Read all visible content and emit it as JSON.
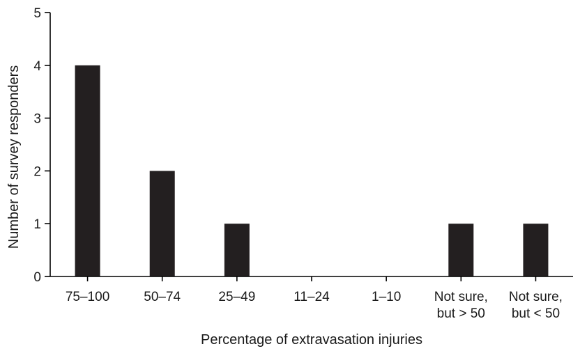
{
  "chart_data": {
    "type": "bar",
    "categories": [
      [
        "75–100"
      ],
      [
        "50–74"
      ],
      [
        "25–49"
      ],
      [
        "11–24"
      ],
      [
        "1–10"
      ],
      [
        "Not sure,",
        "but > 50"
      ],
      [
        "Not sure,",
        "but < 50"
      ]
    ],
    "values": [
      4,
      2,
      1,
      0,
      0,
      1,
      1
    ],
    "xlabel": "Percentage of extravasation injuries",
    "ylabel": "Number of survey responders",
    "ylim": [
      0,
      5
    ],
    "yticks": [
      0,
      1,
      2,
      3,
      4,
      5
    ],
    "grid": false,
    "legend": "none",
    "colors": {
      "bar": "#231f20",
      "axis": "#000000",
      "text": "#1a1a1a"
    }
  }
}
